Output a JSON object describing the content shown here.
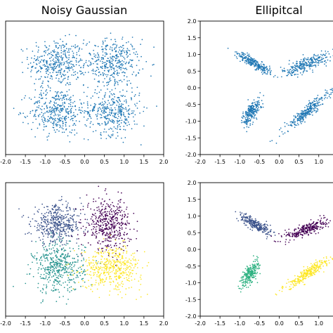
{
  "chart_data": [
    {
      "type": "scatter",
      "title": "Noisy Gaussian",
      "xlim": [
        -2.0,
        2.0
      ],
      "ylim": [
        -2.0,
        2.0
      ],
      "xticks": [
        "-2.0",
        "-1.5",
        "-1.0",
        "-0.5",
        "0.0",
        "0.5",
        "1.0",
        "1.5",
        "2.0"
      ],
      "yticks": [],
      "grid": false,
      "series": [
        {
          "color": "#1f77b4",
          "clusters": [
            {
              "cx": -0.7,
              "cy": 0.75,
              "sx": 0.35,
              "sy": 0.35,
              "n": 380
            },
            {
              "cx": 0.7,
              "cy": 0.75,
              "sx": 0.35,
              "sy": 0.35,
              "n": 380
            },
            {
              "cx": -0.7,
              "cy": -0.7,
              "sx": 0.35,
              "sy": 0.35,
              "n": 380
            },
            {
              "cx": 0.7,
              "cy": -0.7,
              "sx": 0.35,
              "sy": 0.35,
              "n": 380
            }
          ]
        }
      ]
    },
    {
      "type": "scatter",
      "title": "Ellipitcal",
      "xlim": [
        -2.0,
        2.0
      ],
      "ylim": [
        -2.0,
        2.0
      ],
      "xticks": [
        "-2.0",
        "-1.5",
        "-1.0",
        "-0.5",
        "0.0",
        "0.5",
        "1.0"
      ],
      "yticks": [
        "2.0",
        "1.5",
        "1.0",
        "0.5",
        "0.0",
        "-0.5",
        "-1.0",
        "-1.5",
        "-2.0"
      ],
      "grid": false,
      "series": [
        {
          "color": "#1f77b4",
          "clusters": [
            {
              "cx": -0.65,
              "cy": 0.75,
              "major": 0.26,
              "minor": 0.06,
              "angle": -35,
              "n": 260
            },
            {
              "cx": 0.7,
              "cy": 0.72,
              "major": 0.32,
              "minor": 0.1,
              "angle": 25,
              "n": 280
            },
            {
              "cx": -0.7,
              "cy": -0.72,
              "major": 0.22,
              "minor": 0.08,
              "angle": 65,
              "n": 240
            },
            {
              "cx": 0.7,
              "cy": -0.72,
              "major": 0.4,
              "minor": 0.07,
              "angle": 45,
              "n": 300
            }
          ]
        }
      ]
    },
    {
      "type": "scatter",
      "title": "",
      "xlim": [
        -2.0,
        2.0
      ],
      "ylim": [
        -2.0,
        2.0
      ],
      "xticks": [
        "-2.0",
        "-1.5",
        "-1.0",
        "-0.5",
        "0.0",
        "0.5",
        "1.0",
        "1.5",
        "2.0"
      ],
      "yticks": [],
      "grid": false,
      "series": [
        {
          "color": "#3b528b",
          "clusters": [
            {
              "cx": -0.7,
              "cy": 0.75,
              "sx": 0.32,
              "sy": 0.28,
              "n": 460
            }
          ]
        },
        {
          "color": "#440154",
          "clusters": [
            {
              "cx": 0.6,
              "cy": 0.75,
              "sx": 0.28,
              "sy": 0.38,
              "n": 460
            }
          ]
        },
        {
          "color": "#21918c",
          "clusters": [
            {
              "cx": -0.65,
              "cy": -0.55,
              "sx": 0.32,
              "sy": 0.38,
              "n": 460
            }
          ]
        },
        {
          "color": "#fde725",
          "clusters": [
            {
              "cx": 0.7,
              "cy": -0.55,
              "sx": 0.38,
              "sy": 0.32,
              "n": 460
            }
          ]
        }
      ]
    },
    {
      "type": "scatter",
      "title": "",
      "xlim": [
        -2.0,
        2.0
      ],
      "ylim": [
        -2.0,
        2.0
      ],
      "xticks": [
        "-2.0",
        "-1.5",
        "-1.0",
        "-0.5",
        "0.0",
        "0.5",
        "1.0"
      ],
      "yticks": [
        "2.0",
        "1.5",
        "1.0",
        "0.5",
        "0.0",
        "-0.5",
        "-1.0",
        "-1.5",
        "-2.0"
      ],
      "grid": false,
      "series": [
        {
          "color": "#3b528b",
          "clusters": [
            {
              "cx": -0.6,
              "cy": 0.75,
              "major": 0.24,
              "minor": 0.07,
              "angle": -35,
              "n": 260
            }
          ]
        },
        {
          "color": "#440154",
          "clusters": [
            {
              "cx": 0.7,
              "cy": 0.6,
              "major": 0.28,
              "minor": 0.09,
              "angle": 25,
              "n": 280
            }
          ]
        },
        {
          "color": "#2ab07f",
          "clusters": [
            {
              "cx": -0.75,
              "cy": -0.75,
              "major": 0.2,
              "minor": 0.08,
              "angle": 65,
              "n": 240
            }
          ]
        },
        {
          "color": "#fde725",
          "clusters": [
            {
              "cx": 0.7,
              "cy": -0.72,
              "major": 0.36,
              "minor": 0.07,
              "angle": 40,
              "n": 300
            }
          ]
        }
      ]
    }
  ]
}
